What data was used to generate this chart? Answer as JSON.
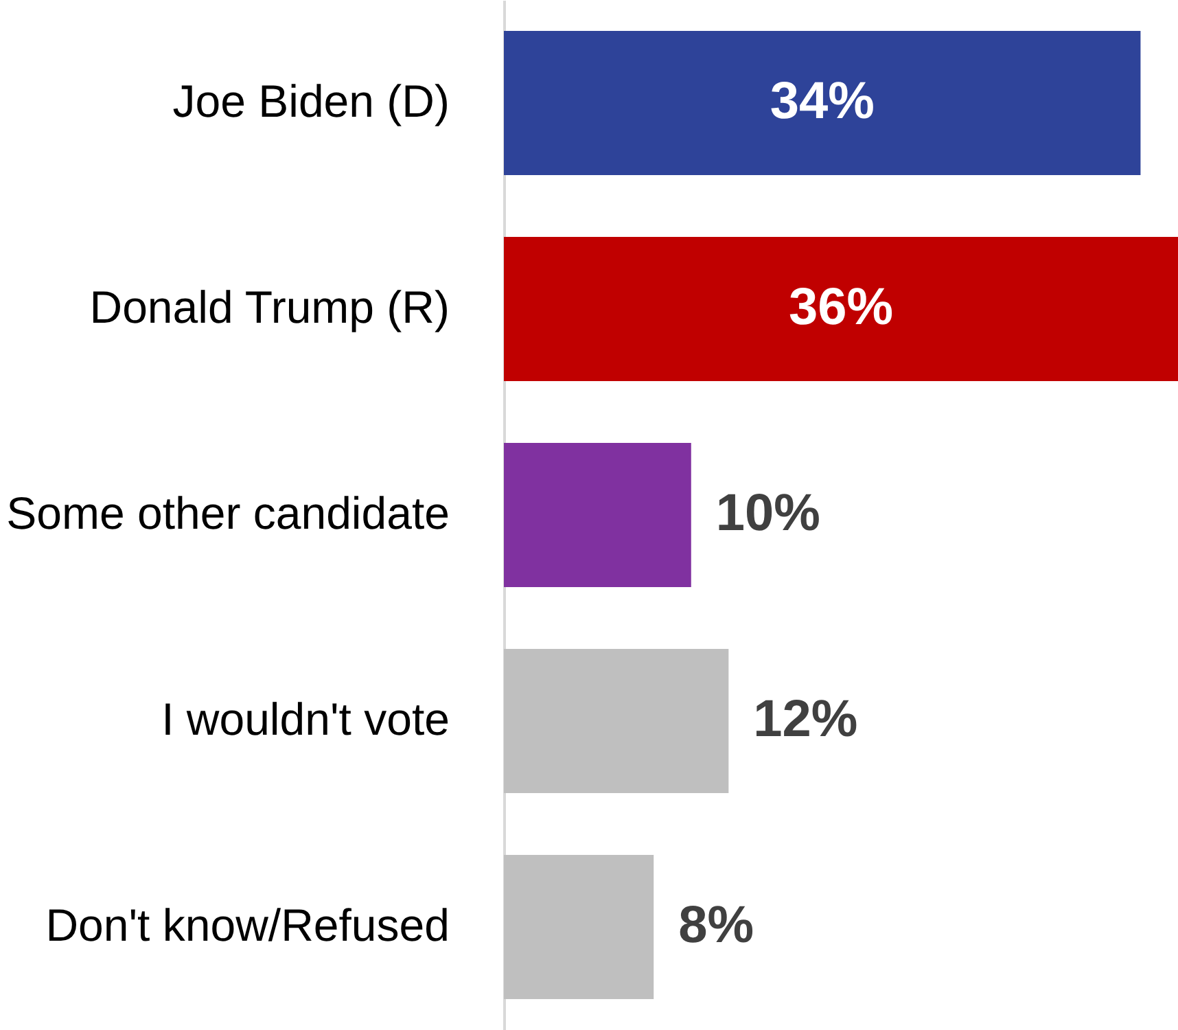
{
  "chart_data": {
    "type": "bar",
    "orientation": "horizontal",
    "categories": [
      "Joe Biden (D)",
      "Donald Trump (R)",
      "Some other candidate",
      "I wouldn't vote",
      "Don't know/Refused"
    ],
    "values": [
      34,
      36,
      10,
      12,
      8
    ],
    "colors": [
      "#2e4399",
      "#c00000",
      "#8031a0",
      "#bfbfbf",
      "#bfbfbf"
    ],
    "value_labels": [
      "34%",
      "36%",
      "10%",
      "12%",
      "8%"
    ],
    "tick_labels": "y"
  }
}
